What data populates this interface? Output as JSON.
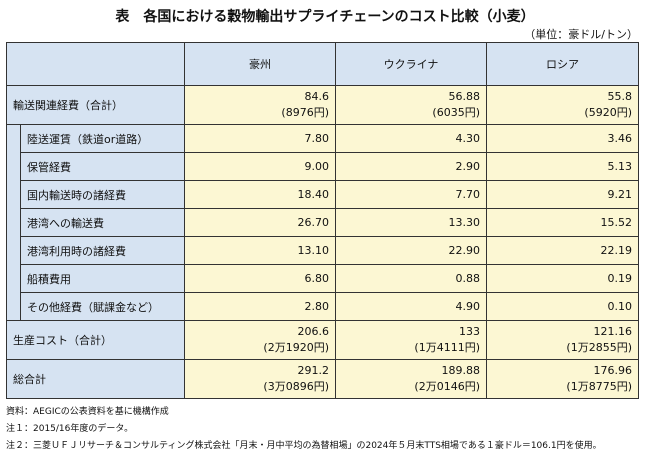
{
  "title": "表　各国における穀物輸出サプライチェーンのコスト比較（小麦）",
  "unit": "（単位：豪ドル/トン）",
  "columns": [
    "豪州",
    "ウクライナ",
    "ロシア"
  ],
  "rows": [
    {
      "label": "輸送関連経費（合計）",
      "values": [
        "84.6",
        "56.88",
        "55.8"
      ],
      "sub": [
        "(8976円)",
        "(6035円)",
        "(5920円)"
      ]
    },
    {
      "label": "陸送運賃（鉄道or道路）",
      "values": [
        "7.80",
        "4.30",
        "3.46"
      ]
    },
    {
      "label": "保管経費",
      "values": [
        "9.00",
        "2.90",
        "5.13"
      ]
    },
    {
      "label": "国内輸送時の諸経費",
      "values": [
        "18.40",
        "7.70",
        "9.21"
      ]
    },
    {
      "label": "港湾への輸送費",
      "values": [
        "26.70",
        "13.30",
        "15.52"
      ]
    },
    {
      "label": "港湾利用時の諸経費",
      "values": [
        "13.10",
        "22.90",
        "22.19"
      ]
    },
    {
      "label": "船積費用",
      "values": [
        "6.80",
        "0.88",
        "0.19"
      ]
    },
    {
      "label": "その他経費（賦課金など）",
      "values": [
        "2.80",
        "4.90",
        "0.10"
      ]
    },
    {
      "label": "生産コスト（合計）",
      "values": [
        "206.6",
        "133",
        "121.16"
      ],
      "sub": [
        "(2万1920円)",
        "(1万4111円)",
        "(1万2855円)"
      ]
    },
    {
      "label": "総合計",
      "values": [
        "291.2",
        "189.88",
        "176.96"
      ],
      "sub": [
        "(3万0896円)",
        "(2万0146円)",
        "(1万8775円)"
      ]
    }
  ],
  "notes": [
    "資料：AEGICの公表資料を基に機構作成",
    "注１：2015/16年度のデータ。",
    "注２：三菱ＵＦＪリサーチ＆コンサルティング株式会社「月末・月中平均の為替相場」の2024年５月末TTS相場である１豪ドル＝106.1円を使用。"
  ]
}
